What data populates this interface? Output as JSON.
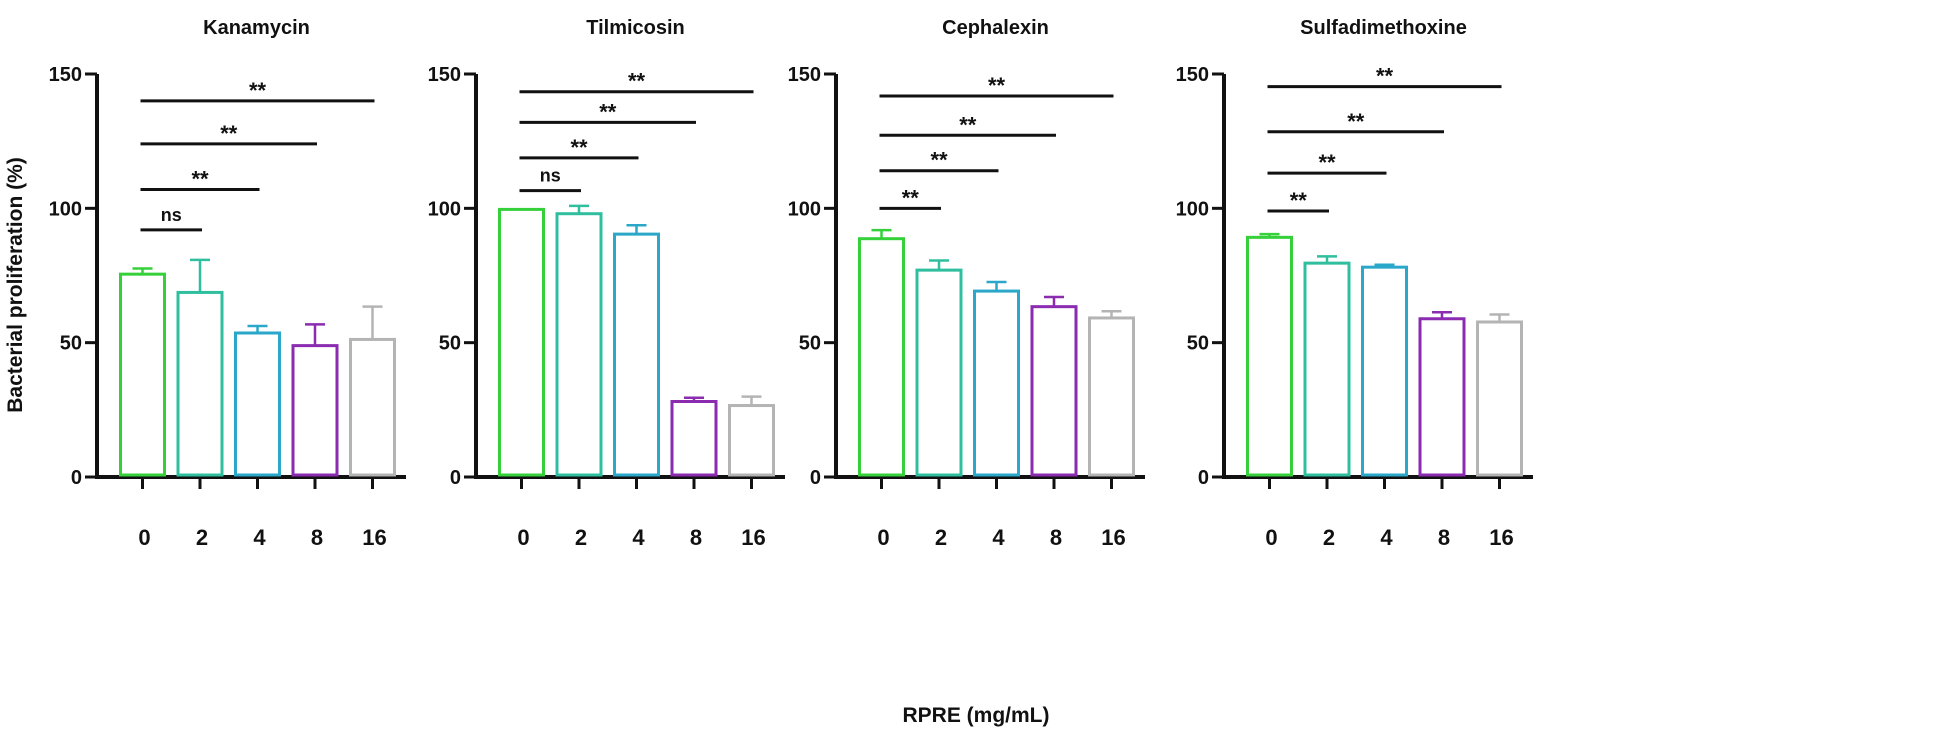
{
  "figure": {
    "ylabel": "Bacterial  proliferation  (%)",
    "xlabel": "RPRE  (mg/mL)"
  },
  "chart_data": [
    {
      "type": "bar",
      "title": "Kanamycin",
      "categories": [
        "0",
        "2",
        "4",
        "8",
        "16"
      ],
      "values": [
        75.5,
        68.7,
        53.6,
        48.9,
        51.2
      ],
      "error_upper": [
        77.6,
        80.8,
        56.2,
        56.8,
        63.4
      ],
      "ylim": [
        0,
        150
      ],
      "yticks": [
        "0",
        "50",
        "100",
        "150"
      ],
      "significance": [
        {
          "from": "0",
          "to": "2",
          "label": "ns",
          "level": 92
        },
        {
          "from": "0",
          "to": "4",
          "label": "**",
          "level": 107
        },
        {
          "from": "0",
          "to": "8",
          "label": "**",
          "level": 124
        },
        {
          "from": "0",
          "to": "16",
          "label": "**",
          "level": 140
        }
      ]
    },
    {
      "type": "bar",
      "title": "Tilmicosin",
      "categories": [
        "0",
        "2",
        "4",
        "8",
        "16"
      ],
      "values": [
        99.6,
        98.0,
        90.4,
        28.1,
        26.6
      ],
      "error_upper": [
        99.6,
        100.9,
        93.7,
        29.5,
        29.9
      ],
      "ylim": [
        0,
        150
      ],
      "yticks": [
        "0",
        "50",
        "100",
        "150"
      ],
      "significance": [
        {
          "from": "0",
          "to": "2",
          "label": "ns",
          "level": 106.6
        },
        {
          "from": "0",
          "to": "4",
          "label": "**",
          "level": 118.8
        },
        {
          "from": "0",
          "to": "8",
          "label": "**",
          "level": 132
        },
        {
          "from": "0",
          "to": "16",
          "label": "**",
          "level": 143.4
        }
      ]
    },
    {
      "type": "bar",
      "title": "Cephalexin",
      "categories": [
        "0",
        "2",
        "4",
        "8",
        "16"
      ],
      "values": [
        88.7,
        77.0,
        69.2,
        63.4,
        59.2
      ],
      "error_upper": [
        91.9,
        80.6,
        72.6,
        67.0,
        61.7
      ],
      "ylim": [
        0,
        150
      ],
      "yticks": [
        "0",
        "50",
        "100",
        "150"
      ],
      "significance": [
        {
          "from": "0",
          "to": "2",
          "label": "**",
          "level": 100
        },
        {
          "from": "0",
          "to": "4",
          "label": "**",
          "level": 114
        },
        {
          "from": "0",
          "to": "8",
          "label": "**",
          "level": 127.2
        },
        {
          "from": "0",
          "to": "16",
          "label": "**",
          "level": 141.8
        }
      ]
    },
    {
      "type": "bar",
      "title": "Sulfadimethoxine",
      "categories": [
        "0",
        "2",
        "4",
        "8",
        "16"
      ],
      "values": [
        89.2,
        79.6,
        78.1,
        58.9,
        57.7
      ],
      "error_upper": [
        90.4,
        82.1,
        79.0,
        61.3,
        60.5
      ],
      "ylim": [
        0,
        150
      ],
      "yticks": [
        "0",
        "50",
        "100",
        "150"
      ],
      "significance": [
        {
          "from": "0",
          "to": "2",
          "label": "**",
          "level": 99
        },
        {
          "from": "0",
          "to": "4",
          "label": "**",
          "level": 113.1
        },
        {
          "from": "0",
          "to": "8",
          "label": "**",
          "level": 128.5
        },
        {
          "from": "0",
          "to": "16",
          "label": "**",
          "level": 145.3
        }
      ]
    }
  ],
  "colors": {
    "bars": [
      "#35d03a",
      "#2fbf9e",
      "#2aa7c9",
      "#8a2bb0",
      "#b4b4b4"
    ],
    "axis": "#111111"
  }
}
